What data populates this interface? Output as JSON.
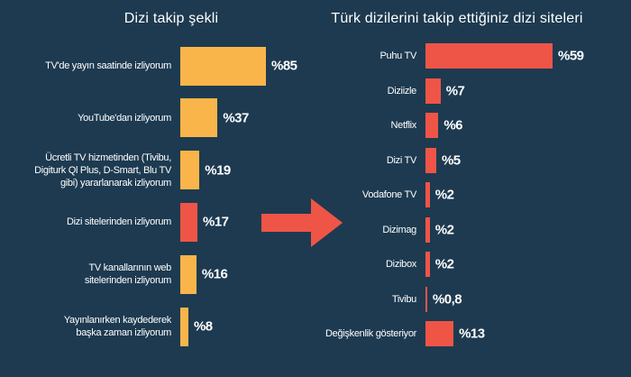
{
  "chart_data": [
    {
      "type": "hbar",
      "title": "Dizi takip şekli",
      "categories": [
        "TV'de yayın saatinde izliyorum",
        "YouTube'dan izliyorum",
        "Ücretli TV hizmetinden (Tivibu,\nDigiturk Ql Plus, D-Smart, Blu TV\ngibi) yararlanarak izliyorum",
        "Dizi sitelerinden izliyorum",
        "TV kanallarının web\nsitelerinden izliyorum",
        "Yayınlanırken kaydederek\nbaşka zaman izliyorum"
      ],
      "values": [
        85,
        37,
        19,
        17,
        16,
        8
      ],
      "value_labels": [
        "%85",
        "%37",
        "%19",
        "%17",
        "%16",
        "%8"
      ],
      "colors": [
        "#f9b54a",
        "#f9b54a",
        "#f9b54a",
        "#ef5547",
        "#f9b54a",
        "#f9b54a"
      ]
    },
    {
      "type": "hbar",
      "title": "Türk dizilerini takip ettiğiniz dizi siteleri",
      "categories": [
        "Puhu TV",
        "Diziizle",
        "Netflix",
        "Dizi TV",
        "Vodafone TV",
        "Dizimag",
        "Dizibox",
        "Tivibu",
        "Değişkenlik gösteriyor"
      ],
      "values": [
        59,
        7,
        6,
        5,
        2,
        2,
        2,
        0.8,
        13
      ],
      "value_labels": [
        "%59",
        "%7",
        "%6",
        "%5",
        "%2",
        "%2",
        "%2",
        "%0,8",
        "%13"
      ],
      "color": "#ef5547"
    }
  ]
}
